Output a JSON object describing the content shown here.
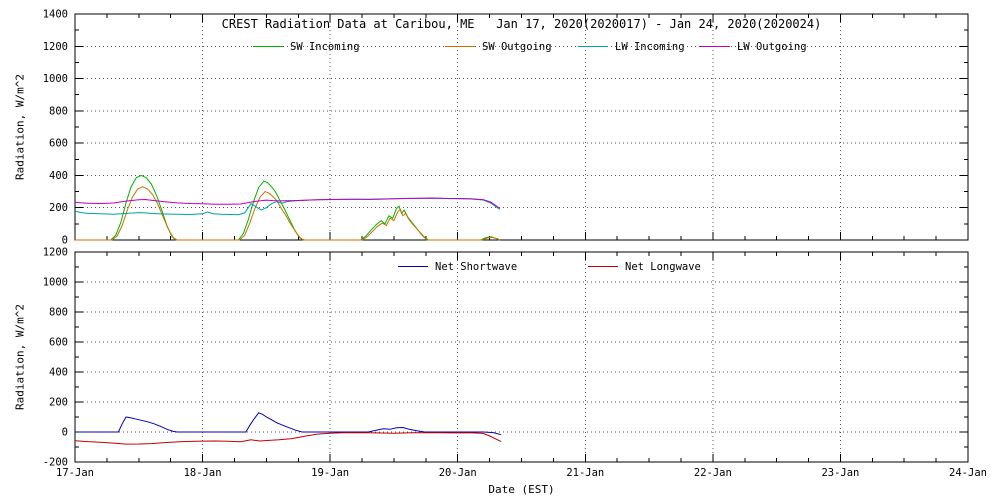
{
  "figure": {
    "title": "CREST Radiation Data at Caribou, ME   Jan 17, 2020(2020017) - Jan 24, 2020(2020024)",
    "xlabel": "Date (EST)"
  },
  "chart_data": [
    {
      "type": "line",
      "name": "radiation-components",
      "ylabel": "Radiation, W/m^2",
      "ylim": [
        0,
        1400
      ],
      "ytick_interval": 200,
      "xlim": [
        17,
        24
      ],
      "xtick_interval": 1,
      "xtick_labels": [
        "17-Jan",
        "18-Jan",
        "19-Jan",
        "20-Jan",
        "21-Jan",
        "22-Jan",
        "23-Jan",
        "24-Jan"
      ],
      "show_xtick_labels": false,
      "grid": "dotted",
      "legend_position": "top-inside",
      "series": [
        {
          "name": "SW Incoming",
          "color": "#00b400",
          "points": [
            [
              17.0,
              0
            ],
            [
              17.28,
              0
            ],
            [
              17.32,
              30
            ],
            [
              17.36,
              110
            ],
            [
              17.4,
              230
            ],
            [
              17.44,
              330
            ],
            [
              17.48,
              385
            ],
            [
              17.52,
              400
            ],
            [
              17.56,
              385
            ],
            [
              17.6,
              345
            ],
            [
              17.64,
              275
            ],
            [
              17.68,
              185
            ],
            [
              17.72,
              90
            ],
            [
              17.76,
              20
            ],
            [
              17.79,
              0
            ],
            [
              18.28,
              0
            ],
            [
              18.32,
              40
            ],
            [
              18.36,
              130
            ],
            [
              18.4,
              240
            ],
            [
              18.44,
              325
            ],
            [
              18.48,
              365
            ],
            [
              18.51,
              355
            ],
            [
              18.54,
              330
            ],
            [
              18.57,
              300
            ],
            [
              18.6,
              255
            ],
            [
              18.64,
              195
            ],
            [
              18.68,
              130
            ],
            [
              18.72,
              65
            ],
            [
              18.76,
              15
            ],
            [
              18.79,
              0
            ],
            [
              19.24,
              0
            ],
            [
              19.28,
              25
            ],
            [
              19.32,
              60
            ],
            [
              19.36,
              95
            ],
            [
              19.4,
              120
            ],
            [
              19.43,
              100
            ],
            [
              19.46,
              150
            ],
            [
              19.49,
              135
            ],
            [
              19.52,
              195
            ],
            [
              19.54,
              210
            ],
            [
              19.56,
              165
            ],
            [
              19.58,
              185
            ],
            [
              19.61,
              140
            ],
            [
              19.64,
              110
            ],
            [
              19.68,
              70
            ],
            [
              19.72,
              30
            ],
            [
              19.76,
              0
            ],
            [
              20.18,
              0
            ],
            [
              20.22,
              15
            ],
            [
              20.26,
              20
            ],
            [
              20.3,
              10
            ],
            [
              20.33,
              0
            ]
          ]
        },
        {
          "name": "SW Outgoing",
          "color": "#cc7000",
          "points": [
            [
              17.0,
              0
            ],
            [
              17.29,
              0
            ],
            [
              17.33,
              25
            ],
            [
              17.37,
              90
            ],
            [
              17.41,
              185
            ],
            [
              17.45,
              265
            ],
            [
              17.49,
              315
            ],
            [
              17.53,
              330
            ],
            [
              17.57,
              315
            ],
            [
              17.61,
              280
            ],
            [
              17.65,
              220
            ],
            [
              17.69,
              145
            ],
            [
              17.73,
              70
            ],
            [
              17.77,
              15
            ],
            [
              17.8,
              0
            ],
            [
              18.29,
              0
            ],
            [
              18.33,
              30
            ],
            [
              18.37,
              105
            ],
            [
              18.41,
              195
            ],
            [
              18.45,
              265
            ],
            [
              18.49,
              300
            ],
            [
              18.52,
              290
            ],
            [
              18.55,
              270
            ],
            [
              18.58,
              245
            ],
            [
              18.61,
              205
            ],
            [
              18.65,
              155
            ],
            [
              18.69,
              100
            ],
            [
              18.73,
              50
            ],
            [
              18.77,
              10
            ],
            [
              18.8,
              0
            ],
            [
              19.25,
              0
            ],
            [
              19.29,
              20
            ],
            [
              19.33,
              50
            ],
            [
              19.37,
              85
            ],
            [
              19.41,
              105
            ],
            [
              19.44,
              90
            ],
            [
              19.47,
              135
            ],
            [
              19.5,
              120
            ],
            [
              19.53,
              175
            ],
            [
              19.55,
              190
            ],
            [
              19.57,
              150
            ],
            [
              19.59,
              165
            ],
            [
              19.62,
              125
            ],
            [
              19.65,
              95
            ],
            [
              19.69,
              60
            ],
            [
              19.73,
              25
            ],
            [
              19.77,
              0
            ],
            [
              20.19,
              0
            ],
            [
              20.23,
              12
            ],
            [
              20.27,
              16
            ],
            [
              20.31,
              8
            ],
            [
              20.33,
              0
            ]
          ]
        },
        {
          "name": "LW Incoming",
          "color": "#00a0a8",
          "points": [
            [
              17.0,
              178
            ],
            [
              17.05,
              170
            ],
            [
              17.1,
              165
            ],
            [
              17.2,
              162
            ],
            [
              17.3,
              160
            ],
            [
              17.4,
              164
            ],
            [
              17.5,
              170
            ],
            [
              17.55,
              168
            ],
            [
              17.6,
              164
            ],
            [
              17.7,
              161
            ],
            [
              17.8,
              159
            ],
            [
              17.9,
              158
            ],
            [
              18.0,
              162
            ],
            [
              18.04,
              174
            ],
            [
              18.08,
              163
            ],
            [
              18.15,
              160
            ],
            [
              18.22,
              158
            ],
            [
              18.28,
              157
            ],
            [
              18.33,
              168
            ],
            [
              18.38,
              225
            ],
            [
              18.42,
              205
            ],
            [
              18.46,
              185
            ],
            [
              18.5,
              200
            ],
            [
              18.54,
              225
            ],
            [
              18.58,
              238
            ],
            [
              18.62,
              228
            ],
            [
              18.66,
              238
            ],
            [
              18.72,
              242
            ],
            [
              18.8,
              246
            ],
            [
              18.9,
              249
            ],
            [
              19.0,
              250
            ],
            [
              19.1,
              251
            ],
            [
              19.2,
              252
            ],
            [
              19.3,
              251
            ],
            [
              19.4,
              253
            ],
            [
              19.5,
              255
            ],
            [
              19.6,
              257
            ],
            [
              19.7,
              258
            ],
            [
              19.8,
              259
            ],
            [
              19.9,
              257
            ],
            [
              20.0,
              256
            ],
            [
              20.1,
              254
            ],
            [
              20.2,
              248
            ],
            [
              20.26,
              228
            ],
            [
              20.33,
              190
            ]
          ]
        },
        {
          "name": "LW Outgoing",
          "color": "#bc00bc",
          "points": [
            [
              17.0,
              233
            ],
            [
              17.1,
              228
            ],
            [
              17.2,
              226
            ],
            [
              17.3,
              229
            ],
            [
              17.4,
              241
            ],
            [
              17.5,
              249
            ],
            [
              17.55,
              251
            ],
            [
              17.6,
              246
            ],
            [
              17.7,
              237
            ],
            [
              17.8,
              230
            ],
            [
              17.9,
              226
            ],
            [
              18.0,
              224
            ],
            [
              18.1,
              222
            ],
            [
              18.2,
              221
            ],
            [
              18.3,
              223
            ],
            [
              18.4,
              238
            ],
            [
              18.5,
              247
            ],
            [
              18.55,
              244
            ],
            [
              18.6,
              242
            ],
            [
              18.7,
              244
            ],
            [
              18.8,
              246
            ],
            [
              18.9,
              249
            ],
            [
              19.0,
              251
            ],
            [
              19.1,
              252
            ],
            [
              19.2,
              253
            ],
            [
              19.3,
              252
            ],
            [
              19.4,
              254
            ],
            [
              19.5,
              256
            ],
            [
              19.6,
              258
            ],
            [
              19.7,
              259
            ],
            [
              19.8,
              260
            ],
            [
              19.9,
              258
            ],
            [
              20.0,
              257
            ],
            [
              20.1,
              255
            ],
            [
              20.2,
              250
            ],
            [
              20.26,
              235
            ],
            [
              20.33,
              196
            ]
          ]
        }
      ]
    },
    {
      "type": "line",
      "name": "net-radiation",
      "ylabel": "Radiation, W/m^2",
      "ylim": [
        -200,
        1200
      ],
      "ytick_interval": 200,
      "xlim": [
        17,
        24
      ],
      "xtick_interval": 1,
      "xtick_labels": [
        "17-Jan",
        "18-Jan",
        "19-Jan",
        "20-Jan",
        "21-Jan",
        "22-Jan",
        "23-Jan",
        "24-Jan"
      ],
      "show_xtick_labels": true,
      "grid": "dotted",
      "legend_position": "top-inside",
      "series": [
        {
          "name": "Net Shortwave",
          "color": "#0000b4",
          "points": [
            [
              17.0,
              0
            ],
            [
              17.34,
              0
            ],
            [
              17.37,
              55
            ],
            [
              17.4,
              100
            ],
            [
              17.43,
              96
            ],
            [
              17.47,
              88
            ],
            [
              17.52,
              78
            ],
            [
              17.57,
              68
            ],
            [
              17.62,
              55
            ],
            [
              17.67,
              38
            ],
            [
              17.72,
              18
            ],
            [
              17.77,
              4
            ],
            [
              17.8,
              0
            ],
            [
              18.34,
              0
            ],
            [
              18.37,
              45
            ],
            [
              18.41,
              95
            ],
            [
              18.44,
              128
            ],
            [
              18.47,
              118
            ],
            [
              18.5,
              100
            ],
            [
              18.54,
              82
            ],
            [
              18.58,
              62
            ],
            [
              18.63,
              45
            ],
            [
              18.68,
              28
            ],
            [
              18.73,
              12
            ],
            [
              18.78,
              0
            ],
            [
              19.3,
              0
            ],
            [
              19.36,
              12
            ],
            [
              19.42,
              22
            ],
            [
              19.47,
              18
            ],
            [
              19.52,
              28
            ],
            [
              19.57,
              30
            ],
            [
              19.62,
              18
            ],
            [
              19.68,
              8
            ],
            [
              19.74,
              0
            ],
            [
              20.2,
              0
            ],
            [
              20.28,
              -4
            ],
            [
              20.34,
              -18
            ]
          ]
        },
        {
          "name": "Net Longwave",
          "color": "#c00000",
          "points": [
            [
              17.0,
              -58
            ],
            [
              17.1,
              -64
            ],
            [
              17.2,
              -68
            ],
            [
              17.3,
              -74
            ],
            [
              17.4,
              -81
            ],
            [
              17.5,
              -80
            ],
            [
              17.6,
              -77
            ],
            [
              17.7,
              -71
            ],
            [
              17.8,
              -66
            ],
            [
              17.9,
              -63
            ],
            [
              18.0,
              -61
            ],
            [
              18.1,
              -60
            ],
            [
              18.2,
              -62
            ],
            [
              18.3,
              -65
            ],
            [
              18.38,
              -52
            ],
            [
              18.45,
              -60
            ],
            [
              18.52,
              -56
            ],
            [
              18.6,
              -52
            ],
            [
              18.7,
              -44
            ],
            [
              18.8,
              -28
            ],
            [
              18.9,
              -14
            ],
            [
              19.0,
              -8
            ],
            [
              19.1,
              -5
            ],
            [
              19.2,
              -4
            ],
            [
              19.35,
              -6
            ],
            [
              19.5,
              -8
            ],
            [
              19.65,
              -5
            ],
            [
              19.8,
              -4
            ],
            [
              19.95,
              -6
            ],
            [
              20.1,
              -5
            ],
            [
              20.2,
              -9
            ],
            [
              20.26,
              -30
            ],
            [
              20.34,
              -64
            ]
          ]
        }
      ]
    }
  ]
}
